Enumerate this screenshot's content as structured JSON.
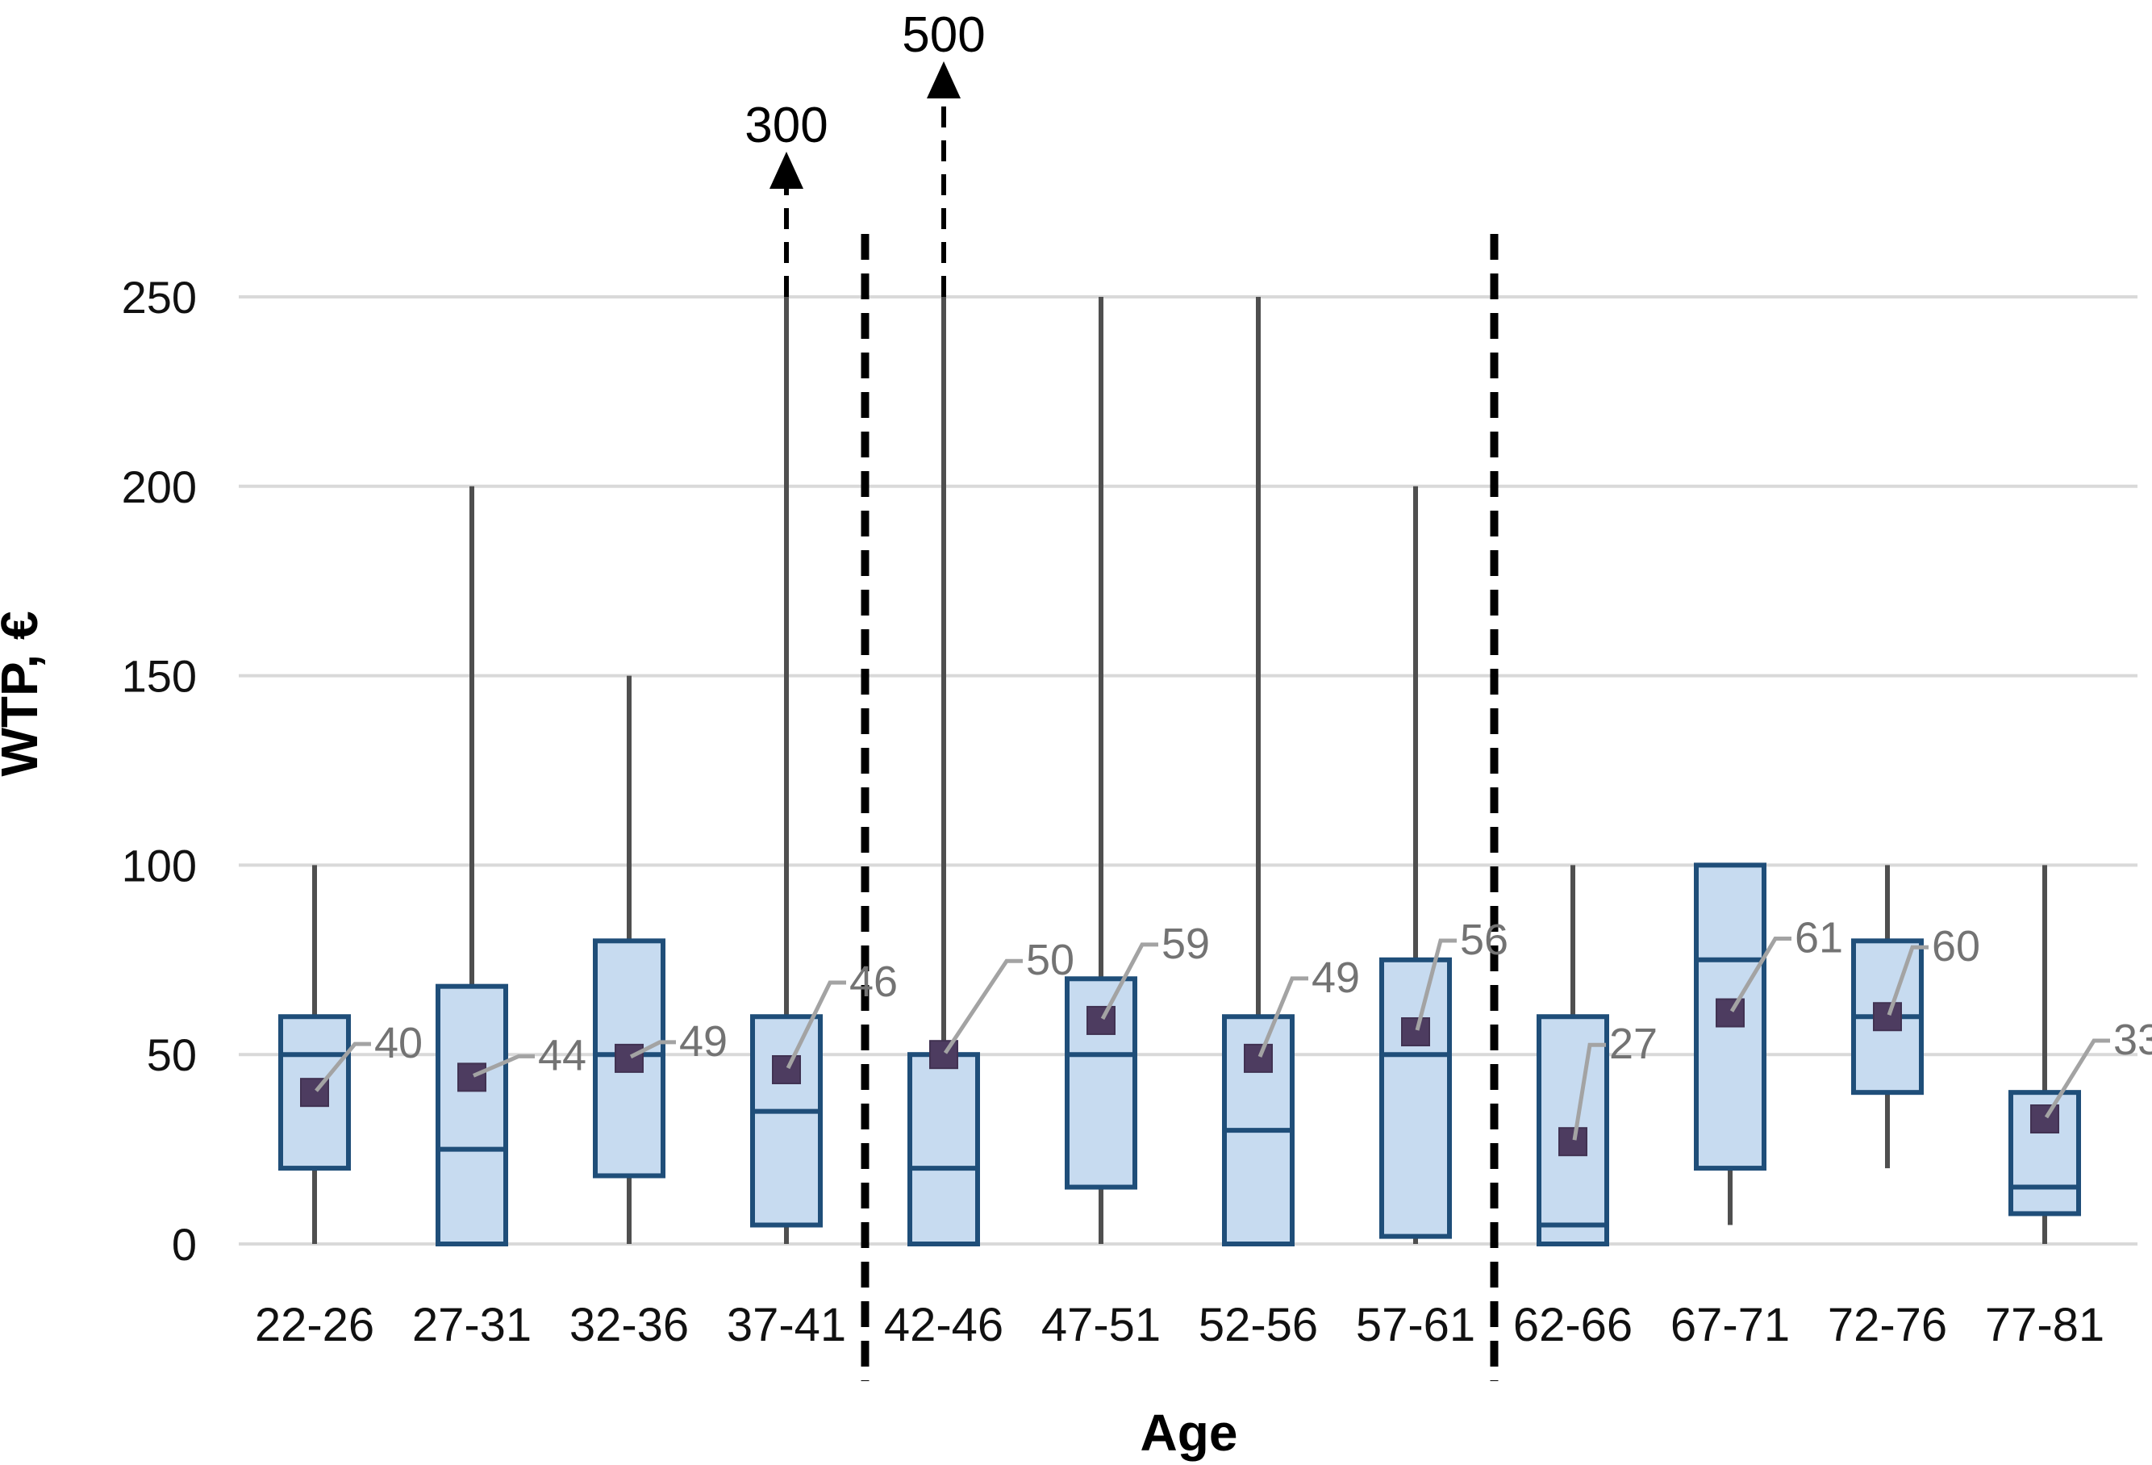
{
  "chart_data": {
    "type": "boxplot",
    "title": "",
    "xlabel": "Age",
    "ylabel": "WTP, €",
    "ylim": [
      0,
      250
    ],
    "y_ticks": [
      0,
      50,
      100,
      150,
      200,
      250
    ],
    "grid": true,
    "legend": null,
    "categories": [
      "22-26",
      "27-31",
      "32-36",
      "37-41",
      "42-46",
      "47-51",
      "52-56",
      "57-61",
      "62-66",
      "67-71",
      "72-76",
      "77-81"
    ],
    "series": [
      {
        "category": "22-26",
        "whisker_low": 0,
        "q1": 20,
        "median": 50,
        "q3": 60,
        "whisker_high": 100,
        "mean": 40,
        "mean_label": "40",
        "arrow_label": null
      },
      {
        "category": "27-31",
        "whisker_low": 0,
        "q1": 0,
        "median": 25,
        "q3": 68,
        "whisker_high": 200,
        "mean": 44,
        "mean_label": "44",
        "arrow_label": null
      },
      {
        "category": "32-36",
        "whisker_low": 0,
        "q1": 18,
        "median": 50,
        "q3": 80,
        "whisker_high": 150,
        "mean": 49,
        "mean_label": "49",
        "arrow_label": null
      },
      {
        "category": "37-41",
        "whisker_low": 0,
        "q1": 5,
        "median": 35,
        "q3": 60,
        "whisker_high": 250,
        "mean": 46,
        "mean_label": "46",
        "arrow_label": "300"
      },
      {
        "category": "42-46",
        "whisker_low": 0,
        "q1": 0,
        "median": 20,
        "q3": 50,
        "whisker_high": 250,
        "mean": 50,
        "mean_label": "50",
        "arrow_label": "500"
      },
      {
        "category": "47-51",
        "whisker_low": 0,
        "q1": 15,
        "median": 50,
        "q3": 70,
        "whisker_high": 250,
        "mean": 59,
        "mean_label": "59",
        "arrow_label": null
      },
      {
        "category": "52-56",
        "whisker_low": 0,
        "q1": 0,
        "median": 30,
        "q3": 60,
        "whisker_high": 250,
        "mean": 49,
        "mean_label": "49",
        "arrow_label": null
      },
      {
        "category": "57-61",
        "whisker_low": 0,
        "q1": 2,
        "median": 50,
        "q3": 75,
        "whisker_high": 200,
        "mean": 56,
        "mean_label": "56",
        "arrow_label": null
      },
      {
        "category": "62-66",
        "whisker_low": 0,
        "q1": 0,
        "median": 5,
        "q3": 60,
        "whisker_high": 100,
        "mean": 27,
        "mean_label": "27",
        "arrow_label": null
      },
      {
        "category": "67-71",
        "whisker_low": 5,
        "q1": 20,
        "median": 75,
        "q3": 100,
        "whisker_high": 100,
        "mean": 61,
        "mean_label": "61",
        "arrow_label": null
      },
      {
        "category": "72-76",
        "whisker_low": 20,
        "q1": 40,
        "median": 60,
        "q3": 80,
        "whisker_high": 100,
        "mean": 60,
        "mean_label": "60",
        "arrow_label": null
      },
      {
        "category": "77-81",
        "whisker_low": 0,
        "q1": 8,
        "median": 15,
        "q3": 40,
        "whisker_high": 100,
        "mean": 33,
        "mean_label": "33",
        "arrow_label": null
      }
    ],
    "outlier_arrows": [
      {
        "category": "37-41",
        "label": "300"
      },
      {
        "category": "42-46",
        "label": "500"
      }
    ],
    "group_separators_between": [
      [
        "37-41",
        "42-46"
      ],
      [
        "57-61",
        "62-66"
      ]
    ],
    "colors": {
      "box_fill": "#c7dbf0",
      "box_border": "#1f4e79",
      "median": "#1f4e79",
      "whisker": "#4f4f4f",
      "mean_marker": "#4d3c60",
      "mean_label": "#737373",
      "leader": "#a3a3a3",
      "gridline": "#d9d9d9",
      "separator": "#000000",
      "arrow": "#000000",
      "axis_text": "#000000"
    }
  }
}
